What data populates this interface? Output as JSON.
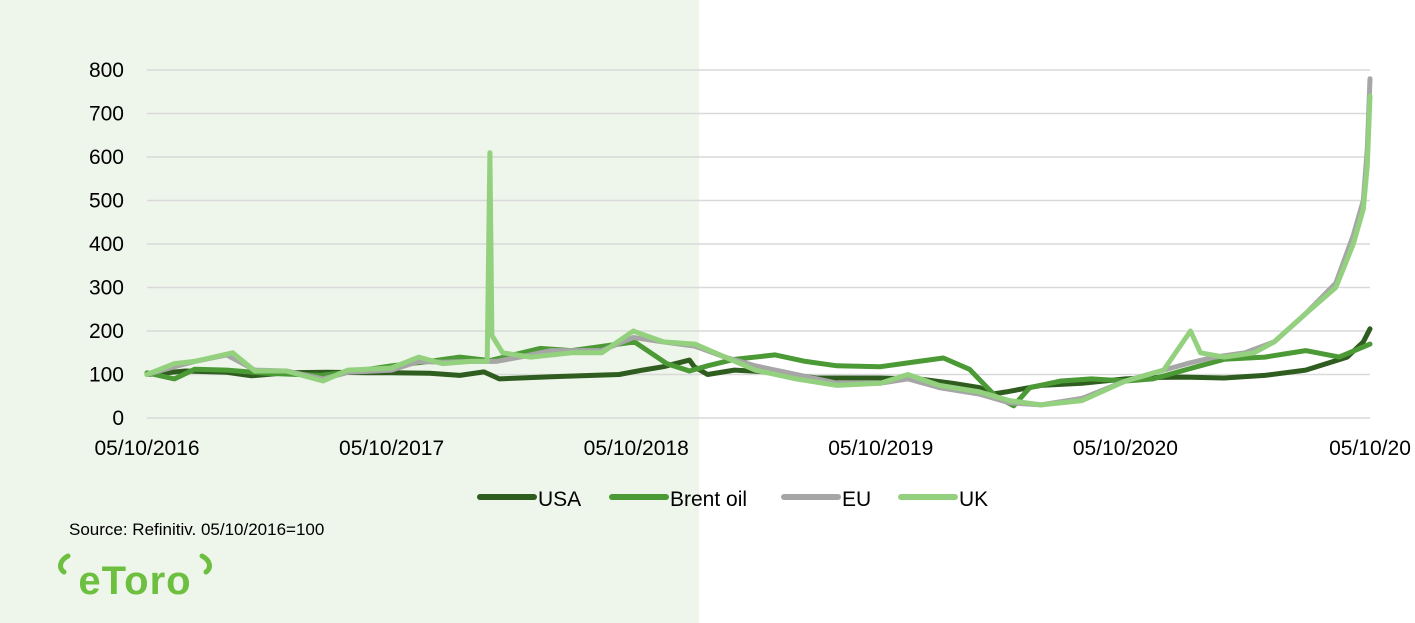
{
  "colors": {
    "left_panel": "#eef5ea",
    "grid": "#d9d9d9",
    "usa": "#2f5d1f",
    "brent": "#4b9a36",
    "eu": "#a6a6a6",
    "uk": "#93d17f",
    "logo": "#6cbf3f"
  },
  "source_text": "Source: Refinitiv. 05/10/2016=100",
  "logo_text": "eToro",
  "chart_data": {
    "type": "line",
    "title": "",
    "xlabel": "",
    "ylabel": "",
    "ylim": [
      0,
      800
    ],
    "yticks": [
      0,
      100,
      200,
      300,
      400,
      500,
      600,
      700,
      800
    ],
    "xlim": [
      "2016-10-05",
      "2021-10-05"
    ],
    "xtick_labels": [
      "05/10/2016",
      "05/10/2017",
      "05/10/2018",
      "05/10/2019",
      "05/10/2020",
      "05/10/20"
    ],
    "grid": true,
    "legend_position": "bottom",
    "series": [
      {
        "name": "USA",
        "color": "#2f5d1f",
        "points": [
          [
            "2016-10-05",
            100
          ],
          [
            "2016-12-01",
            108
          ],
          [
            "2017-02-01",
            105
          ],
          [
            "2017-03-10",
            97
          ],
          [
            "2017-05-01",
            104
          ],
          [
            "2017-07-01",
            105
          ],
          [
            "2017-09-01",
            104
          ],
          [
            "2017-10-05",
            104
          ],
          [
            "2017-12-01",
            103
          ],
          [
            "2018-01-15",
            98
          ],
          [
            "2018-02-20",
            106
          ],
          [
            "2018-03-15",
            90
          ],
          [
            "2018-06-01",
            95
          ],
          [
            "2018-08-01",
            98
          ],
          [
            "2018-09-10",
            100
          ],
          [
            "2018-10-15",
            110
          ],
          [
            "2018-11-15",
            118
          ],
          [
            "2018-12-24",
            133
          ],
          [
            "2018-12-31",
            118
          ],
          [
            "2019-01-20",
            100
          ],
          [
            "2019-03-01",
            110
          ],
          [
            "2019-05-01",
            105
          ],
          [
            "2019-07-01",
            92
          ],
          [
            "2019-09-01",
            92
          ],
          [
            "2019-10-05",
            92
          ],
          [
            "2019-12-01",
            90
          ],
          [
            "2020-01-20",
            80
          ],
          [
            "2020-03-01",
            70
          ],
          [
            "2020-03-20",
            55
          ],
          [
            "2020-04-10",
            60
          ],
          [
            "2020-06-01",
            75
          ],
          [
            "2020-08-01",
            80
          ],
          [
            "2020-10-05",
            90
          ],
          [
            "2020-11-15",
            93
          ],
          [
            "2021-01-01",
            94
          ],
          [
            "2021-03-01",
            92
          ],
          [
            "2021-05-01",
            98
          ],
          [
            "2021-07-01",
            110
          ],
          [
            "2021-08-01",
            125
          ],
          [
            "2021-09-01",
            140
          ],
          [
            "2021-09-25",
            175
          ],
          [
            "2021-10-05",
            205
          ]
        ]
      },
      {
        "name": "Brent oil",
        "color": "#4b9a36",
        "points": [
          [
            "2016-10-05",
            104
          ],
          [
            "2016-11-15",
            90
          ],
          [
            "2016-12-15",
            112
          ],
          [
            "2017-02-01",
            110
          ],
          [
            "2017-04-01",
            103
          ],
          [
            "2017-06-20",
            98
          ],
          [
            "2017-08-01",
            105
          ],
          [
            "2017-10-05",
            120
          ],
          [
            "2017-12-01",
            130
          ],
          [
            "2018-01-15",
            140
          ],
          [
            "2018-03-01",
            132
          ],
          [
            "2018-05-15",
            160
          ],
          [
            "2018-07-01",
            155
          ],
          [
            "2018-10-03",
            175
          ],
          [
            "2018-11-20",
            125
          ],
          [
            "2018-12-24",
            108
          ],
          [
            "2019-01-20",
            120
          ],
          [
            "2019-03-01",
            135
          ],
          [
            "2019-05-01",
            145
          ],
          [
            "2019-06-15",
            130
          ],
          [
            "2019-08-01",
            120
          ],
          [
            "2019-10-05",
            118
          ],
          [
            "2019-12-01",
            130
          ],
          [
            "2020-01-07",
            138
          ],
          [
            "2020-02-15",
            112
          ],
          [
            "2020-03-25",
            50
          ],
          [
            "2020-04-21",
            28
          ],
          [
            "2020-05-15",
            70
          ],
          [
            "2020-07-01",
            85
          ],
          [
            "2020-08-15",
            90
          ],
          [
            "2020-10-05",
            85
          ],
          [
            "2020-11-15",
            90
          ],
          [
            "2021-01-01",
            110
          ],
          [
            "2021-03-01",
            135
          ],
          [
            "2021-05-01",
            140
          ],
          [
            "2021-07-01",
            155
          ],
          [
            "2021-08-20",
            140
          ],
          [
            "2021-10-05",
            170
          ]
        ]
      },
      {
        "name": "EU",
        "color": "#a6a6a6",
        "points": [
          [
            "2016-10-05",
            100
          ],
          [
            "2016-11-15",
            118
          ],
          [
            "2016-12-15",
            130
          ],
          [
            "2017-02-01",
            145
          ],
          [
            "2017-03-15",
            110
          ],
          [
            "2017-05-01",
            108
          ],
          [
            "2017-06-25",
            90
          ],
          [
            "2017-08-01",
            105
          ],
          [
            "2017-10-05",
            110
          ],
          [
            "2017-11-15",
            130
          ],
          [
            "2017-12-20",
            128
          ],
          [
            "2018-02-01",
            130
          ],
          [
            "2018-03-10",
            130
          ],
          [
            "2018-04-15",
            140
          ],
          [
            "2018-06-01",
            155
          ],
          [
            "2018-08-15",
            155
          ],
          [
            "2018-10-01",
            185
          ],
          [
            "2018-11-15",
            175
          ],
          [
            "2019-01-01",
            165
          ],
          [
            "2019-02-15",
            140
          ],
          [
            "2019-04-01",
            120
          ],
          [
            "2019-06-01",
            100
          ],
          [
            "2019-08-01",
            80
          ],
          [
            "2019-10-05",
            80
          ],
          [
            "2019-11-15",
            90
          ],
          [
            "2020-01-01",
            70
          ],
          [
            "2020-03-01",
            55
          ],
          [
            "2020-04-15",
            35
          ],
          [
            "2020-06-01",
            30
          ],
          [
            "2020-08-01",
            45
          ],
          [
            "2020-10-05",
            85
          ],
          [
            "2020-12-01",
            110
          ],
          [
            "2021-01-05",
            125
          ],
          [
            "2021-02-15",
            140
          ],
          [
            "2021-04-01",
            150
          ],
          [
            "2021-05-15",
            175
          ],
          [
            "2021-07-01",
            240
          ],
          [
            "2021-08-15",
            310
          ],
          [
            "2021-09-10",
            420
          ],
          [
            "2021-09-25",
            500
          ],
          [
            "2021-10-01",
            620
          ],
          [
            "2021-10-05",
            780
          ]
        ]
      },
      {
        "name": "UK",
        "color": "#93d17f",
        "points": [
          [
            "2016-10-05",
            100
          ],
          [
            "2016-11-15",
            125
          ],
          [
            "2016-12-15",
            130
          ],
          [
            "2017-02-10",
            150
          ],
          [
            "2017-03-15",
            108
          ],
          [
            "2017-05-01",
            108
          ],
          [
            "2017-06-25",
            85
          ],
          [
            "2017-08-01",
            110
          ],
          [
            "2017-10-05",
            115
          ],
          [
            "2017-11-15",
            140
          ],
          [
            "2017-12-20",
            125
          ],
          [
            "2018-02-01",
            130
          ],
          [
            "2018-02-25",
            130
          ],
          [
            "2018-03-01",
            610
          ],
          [
            "2018-03-04",
            190
          ],
          [
            "2018-03-20",
            150
          ],
          [
            "2018-05-01",
            140
          ],
          [
            "2018-07-01",
            150
          ],
          [
            "2018-08-15",
            150
          ],
          [
            "2018-10-01",
            200
          ],
          [
            "2018-11-15",
            175
          ],
          [
            "2019-01-01",
            170
          ],
          [
            "2019-02-15",
            140
          ],
          [
            "2019-04-01",
            110
          ],
          [
            "2019-06-01",
            90
          ],
          [
            "2019-08-01",
            75
          ],
          [
            "2019-10-05",
            80
          ],
          [
            "2019-11-15",
            100
          ],
          [
            "2020-01-01",
            75
          ],
          [
            "2020-03-01",
            60
          ],
          [
            "2020-04-15",
            40
          ],
          [
            "2020-06-01",
            30
          ],
          [
            "2020-08-01",
            40
          ],
          [
            "2020-10-05",
            85
          ],
          [
            "2020-12-01",
            110
          ],
          [
            "2021-01-10",
            200
          ],
          [
            "2021-01-25",
            150
          ],
          [
            "2021-03-01",
            140
          ],
          [
            "2021-04-15",
            150
          ],
          [
            "2021-05-15",
            175
          ],
          [
            "2021-07-01",
            240
          ],
          [
            "2021-08-15",
            300
          ],
          [
            "2021-09-10",
            400
          ],
          [
            "2021-09-25",
            480
          ],
          [
            "2021-10-01",
            580
          ],
          [
            "2021-10-05",
            740
          ]
        ]
      }
    ]
  }
}
